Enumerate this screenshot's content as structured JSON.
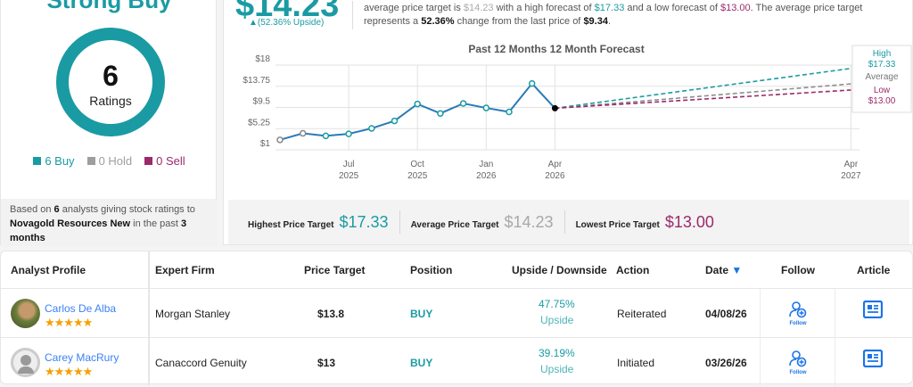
{
  "rating": {
    "title": "Strong Buy",
    "count": "6",
    "count_label": "Ratings",
    "legend": [
      {
        "label": "6 Buy",
        "color": "#1a9ba3"
      },
      {
        "label": "0 Hold",
        "color": "#9e9e9e"
      },
      {
        "label": "0 Sell",
        "color": "#9c2a6b"
      }
    ],
    "based_pre": "Based on ",
    "based_n": "6",
    "based_mid": " analysts giving stock ratings to ",
    "company": "Novagold Resources New",
    "based_mid2": " in the past ",
    "based_period": "3",
    "based_end": "months"
  },
  "target": {
    "average": "$14.23",
    "upside": "▲(52.36% Upside)",
    "desc": {
      "p1": "average price target is ",
      "avg": "$14.23",
      "p2": " with a high forecast of ",
      "high": "$17.33",
      "p3": " and a low forecast of ",
      "low": "$13.00",
      "p4": ". The average price target",
      "p5": "represents a ",
      "pct": "52.36%",
      "p6": " change from the last price of ",
      "last": "$9.34",
      "p7": "."
    },
    "highest_label": "Highest Price Target",
    "highest": "$17.33",
    "average_label": "Average Price Target",
    "average_val": "$14.23",
    "lowest_label": "Lowest Price Target",
    "lowest": "$13.00"
  },
  "chart_data": {
    "type": "line",
    "title": "Past 12 Months  12 Month Forecast",
    "y_ticks": [
      "$18",
      "$13.75",
      "$9.5",
      "$5.25",
      "$1"
    ],
    "y_tick_values": [
      18,
      13.75,
      9.5,
      5.25,
      1
    ],
    "ylim": [
      1,
      18
    ],
    "x_ticks": [
      {
        "m": 3,
        "l1": "Jul",
        "l2": "2025"
      },
      {
        "m": 6,
        "l1": "Oct",
        "l2": "2025"
      },
      {
        "m": 9,
        "l1": "Jan",
        "l2": "2026"
      },
      {
        "m": 12,
        "l1": "Apr",
        "l2": "2026"
      },
      {
        "m": 24,
        "l1": "Apr",
        "l2": "2027"
      }
    ],
    "history": {
      "months": [
        0,
        1,
        2,
        3,
        4,
        5,
        6,
        7,
        8,
        9,
        10,
        11,
        12
      ],
      "values": [
        3.0,
        4.3,
        3.8,
        4.2,
        5.3,
        6.8,
        10.2,
        8.3,
        10.3,
        9.4,
        8.6,
        14.3,
        9.34
      ]
    },
    "forecast": {
      "month": 24,
      "high": 17.33,
      "average": 14.23,
      "low": 13.0
    },
    "forecast_labels": {
      "high": "High",
      "high_val": "$17.33",
      "average": "Average",
      "low": "Low",
      "low_val": "$13.00"
    },
    "colors": {
      "line": "#2a7ab8",
      "high": "#1a9ba3",
      "average": "#8e8e8e",
      "low": "#9c2a6b"
    }
  },
  "table": {
    "headers": [
      "Analyst Profile",
      "Expert Firm",
      "Price Target",
      "Position",
      "Upside / Downside",
      "Action",
      "Date",
      "Follow",
      "Article"
    ],
    "sort_icon": "▼",
    "rows": [
      {
        "name": "Carlos De Alba",
        "stars": "★★★★★",
        "firm": "Morgan Stanley",
        "target": "$13.8",
        "position": "BUY",
        "upside": "47.75%",
        "upside_label": "Upside",
        "action": "Reiterated",
        "date": "04/08/26",
        "follow": "Follow"
      },
      {
        "name": "Carey MacRury",
        "stars": "★★★★★",
        "firm": "Canaccord Genuity",
        "target": "$13",
        "position": "BUY",
        "upside": "39.19%",
        "upside_label": "Upside",
        "action": "Initiated",
        "date": "03/26/26",
        "follow": "Follow"
      }
    ]
  }
}
